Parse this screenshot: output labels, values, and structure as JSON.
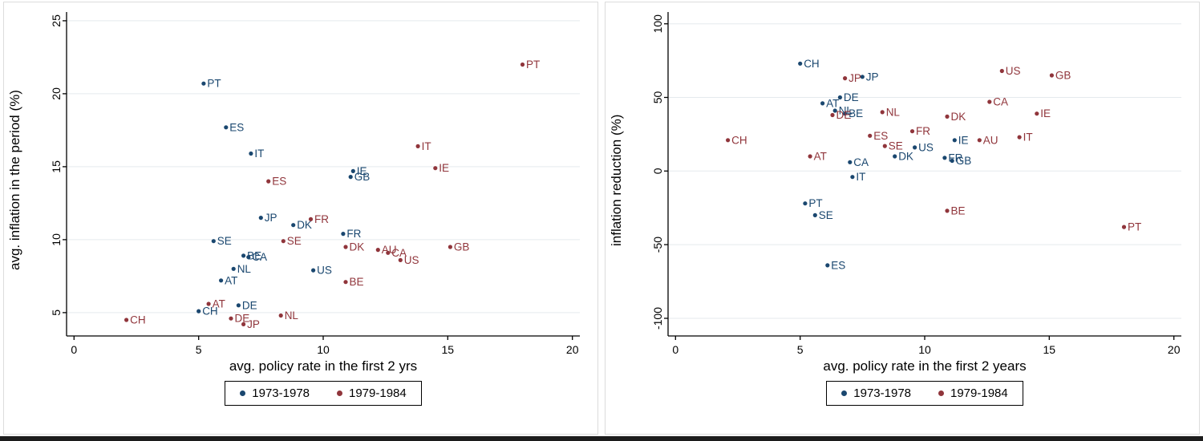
{
  "page": {
    "background": "#ffffff"
  },
  "colors": {
    "series_1973_1978": "#1a476f",
    "series_1979_1984": "#90353b",
    "gridline": "#e5eaee",
    "axis": "#000000",
    "legend_border": "#000000"
  },
  "legend": {
    "items": [
      {
        "label": "1973-1978",
        "color": "#1a476f"
      },
      {
        "label": "1979-1984",
        "color": "#90353b"
      }
    ]
  },
  "chart_data": [
    {
      "type": "scatter",
      "title": "",
      "xlabel": "avg. policy rate in the first 2 yrs",
      "ylabel": "avg. inflation in the period (%)",
      "xlim": [
        -0.3,
        20.3
      ],
      "ylim": [
        3.4,
        25.6
      ],
      "xticks": [
        0,
        5,
        10,
        15,
        20
      ],
      "yticks": [
        5,
        10,
        15,
        20,
        25
      ],
      "grid": "horizontal",
      "legend_position": "bottom",
      "series": [
        {
          "name": "1973-1978",
          "color": "#1a476f",
          "points": [
            [
              "PT",
              5.2,
              20.7
            ],
            [
              "ES",
              6.1,
              17.7
            ],
            [
              "IT",
              7.1,
              15.9
            ],
            [
              "IE",
              11.2,
              14.7
            ],
            [
              "GB",
              11.1,
              14.3
            ],
            [
              "JP",
              7.5,
              11.5
            ],
            [
              "DK",
              8.8,
              11.0
            ],
            [
              "FR",
              10.8,
              10.4
            ],
            [
              "SE",
              5.6,
              9.9
            ],
            [
              "BE",
              6.8,
              8.9
            ],
            [
              "CA",
              7.0,
              8.8
            ],
            [
              "NL",
              6.4,
              8.0
            ],
            [
              "US",
              9.6,
              7.9
            ],
            [
              "AT",
              5.9,
              7.2
            ],
            [
              "DE",
              6.6,
              5.5
            ],
            [
              "CH",
              5.0,
              5.1
            ]
          ]
        },
        {
          "name": "1979-1984",
          "color": "#90353b",
          "points": [
            [
              "PT",
              18.0,
              22.0
            ],
            [
              "IT",
              13.8,
              16.4
            ],
            [
              "IE",
              14.5,
              14.9
            ],
            [
              "ES",
              7.8,
              14.0
            ],
            [
              "FR",
              9.5,
              11.4
            ],
            [
              "SE",
              8.4,
              9.9
            ],
            [
              "GB",
              15.1,
              9.5
            ],
            [
              "DK",
              10.9,
              9.5
            ],
            [
              "AU",
              12.2,
              9.3
            ],
            [
              "CA",
              12.6,
              9.1
            ],
            [
              "US",
              13.1,
              8.6
            ],
            [
              "BE",
              10.9,
              7.1
            ],
            [
              "AT",
              5.4,
              5.6
            ],
            [
              "NL",
              8.3,
              4.8
            ],
            [
              "DE",
              6.3,
              4.6
            ],
            [
              "CH",
              2.1,
              4.5
            ],
            [
              "JP",
              6.8,
              4.2
            ]
          ]
        }
      ]
    },
    {
      "type": "scatter",
      "title": "",
      "xlabel": "avg. policy rate in the first 2 years",
      "ylabel": "inflation reduction (%)",
      "xlim": [
        -0.3,
        20.3
      ],
      "ylim": [
        -112,
        108
      ],
      "xticks": [
        0,
        5,
        10,
        15,
        20
      ],
      "yticks": [
        -100,
        -50,
        0,
        50,
        100
      ],
      "grid": "horizontal",
      "legend_position": "bottom",
      "series": [
        {
          "name": "1973-1978",
          "color": "#1a476f",
          "points": [
            [
              "CH",
              5.0,
              73
            ],
            [
              "JP",
              7.5,
              64
            ],
            [
              "DE",
              6.6,
              50
            ],
            [
              "AT",
              5.9,
              46
            ],
            [
              "NL",
              6.4,
              41
            ],
            [
              "BE",
              6.8,
              39
            ],
            [
              "IE",
              11.2,
              21
            ],
            [
              "US",
              9.6,
              16
            ],
            [
              "DK",
              8.8,
              10
            ],
            [
              "FR",
              10.8,
              9
            ],
            [
              "GB",
              11.1,
              7
            ],
            [
              "CA",
              7.0,
              6
            ],
            [
              "IT",
              7.1,
              -4
            ],
            [
              "PT",
              5.2,
              -22
            ],
            [
              "SE",
              5.6,
              -30
            ],
            [
              "ES",
              6.1,
              -64
            ]
          ]
        },
        {
          "name": "1979-1984",
          "color": "#90353b",
          "points": [
            [
              "US",
              13.1,
              68
            ],
            [
              "GB",
              15.1,
              65
            ],
            [
              "JP",
              6.8,
              63
            ],
            [
              "CA",
              12.6,
              47
            ],
            [
              "NL",
              8.3,
              40
            ],
            [
              "IE",
              14.5,
              39
            ],
            [
              "DE",
              6.3,
              38
            ],
            [
              "DK",
              10.9,
              37
            ],
            [
              "FR",
              9.5,
              27
            ],
            [
              "ES",
              7.8,
              24
            ],
            [
              "IT",
              13.8,
              23
            ],
            [
              "CH",
              2.1,
              21
            ],
            [
              "AU",
              12.2,
              21
            ],
            [
              "SE",
              8.4,
              17
            ],
            [
              "AT",
              5.4,
              10
            ],
            [
              "BE",
              10.9,
              -27
            ],
            [
              "PT",
              18.0,
              -38
            ]
          ]
        }
      ]
    }
  ]
}
